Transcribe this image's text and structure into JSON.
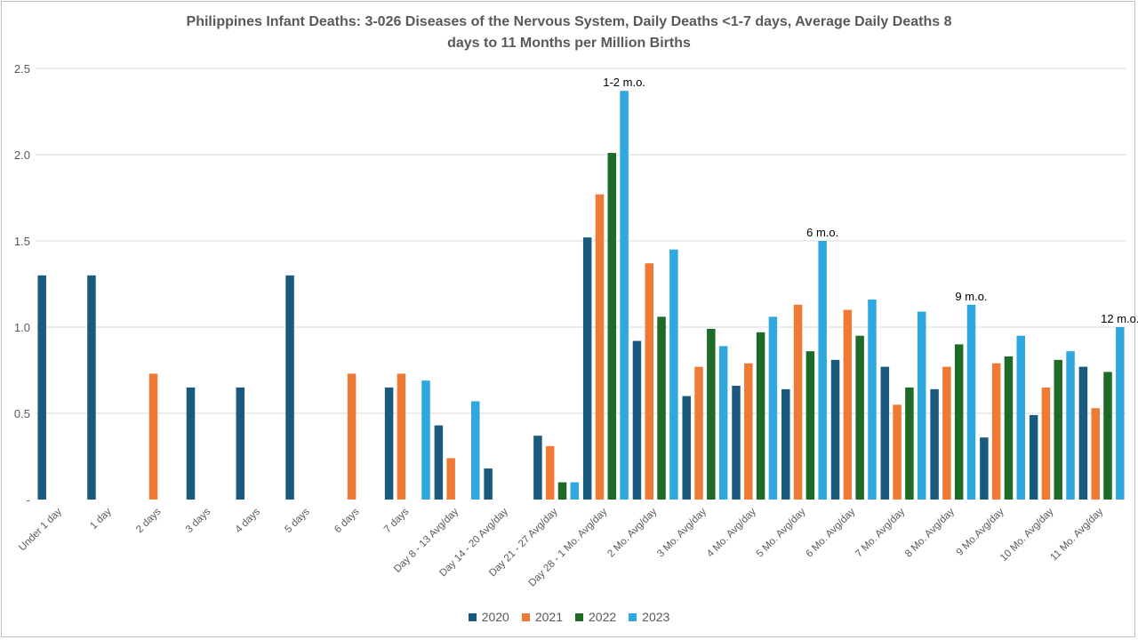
{
  "chart_data": {
    "type": "bar",
    "title_line1": "Philippines Infant Deaths: 3-026 Diseases of the Nervous System, Daily Deaths <1-7 days, Average Daily Deaths 8",
    "title_line2": "days to 11 Months per Million Births",
    "ylim": [
      0,
      2.5
    ],
    "yticks": [
      "-",
      "0.5",
      "1.0",
      "1.5",
      "2.0",
      "2.5"
    ],
    "ytick_values": [
      0,
      0.5,
      1.0,
      1.5,
      2.0,
      2.5
    ],
    "grid": true,
    "legend_position": "bottom",
    "categories": [
      "Under 1 day",
      "1 day",
      "2 days",
      "3 days",
      "4 days",
      "5 days",
      "6 days",
      "7 days",
      "Day 8 - 13 Avg/day",
      "Day 14 - 20 Avg/day",
      "Day 21 - 27 Avg/day",
      "Day 28 - 1 Mo. Avg/day",
      "2 Mo. Avg/day",
      "3 Mo. Avg/day",
      "4 Mo. Avg/day",
      "5 Mo. Avg/day",
      "6 Mo. Avg/day",
      "7 Mo. Avg/day",
      "8 Mo. Avg/day",
      "9 Mo.Avg/day",
      "10 Mo. Avg/day",
      "11 Mo. Avg/day"
    ],
    "series": [
      {
        "name": "2020",
        "color": "#1a5a7e",
        "values": [
          1.3,
          1.3,
          0,
          0.65,
          0.65,
          1.3,
          0,
          0.65,
          0.43,
          0.18,
          0.37,
          1.52,
          0.92,
          0.6,
          0.66,
          0.64,
          0.81,
          0.77,
          0.64,
          0.36,
          0.49,
          0.77
        ]
      },
      {
        "name": "2021",
        "color": "#ee7a36",
        "values": [
          0,
          0,
          0.73,
          0,
          0,
          0,
          0.73,
          0.73,
          0.24,
          0,
          0.31,
          1.77,
          1.37,
          0.77,
          0.79,
          1.13,
          1.1,
          0.55,
          0.77,
          0.79,
          0.65,
          0.53
        ]
      },
      {
        "name": "2022",
        "color": "#1e6b27",
        "values": [
          0,
          0,
          0,
          0,
          0,
          0,
          0,
          0,
          0,
          0,
          0.1,
          2.01,
          1.06,
          0.99,
          0.97,
          0.86,
          0.95,
          0.65,
          0.9,
          0.83,
          0.81,
          0.74
        ]
      },
      {
        "name": "2023",
        "color": "#2ea8df",
        "values": [
          0,
          0,
          0,
          0,
          0,
          0,
          0,
          0.69,
          0.57,
          0,
          0.1,
          2.37,
          1.45,
          0.89,
          1.06,
          1.5,
          1.16,
          1.09,
          1.13,
          0.95,
          0.86,
          1.0
        ]
      }
    ],
    "annotations": [
      {
        "text": "1-2 m.o.",
        "category_index": 11,
        "series_index": 3
      },
      {
        "text": "6 m.o.",
        "category_index": 15,
        "series_index": 3
      },
      {
        "text": "9 m.o.",
        "category_index": 18,
        "series_index": 3
      },
      {
        "text": "12 m.o.",
        "category_index": 21,
        "series_index": 3
      }
    ]
  }
}
